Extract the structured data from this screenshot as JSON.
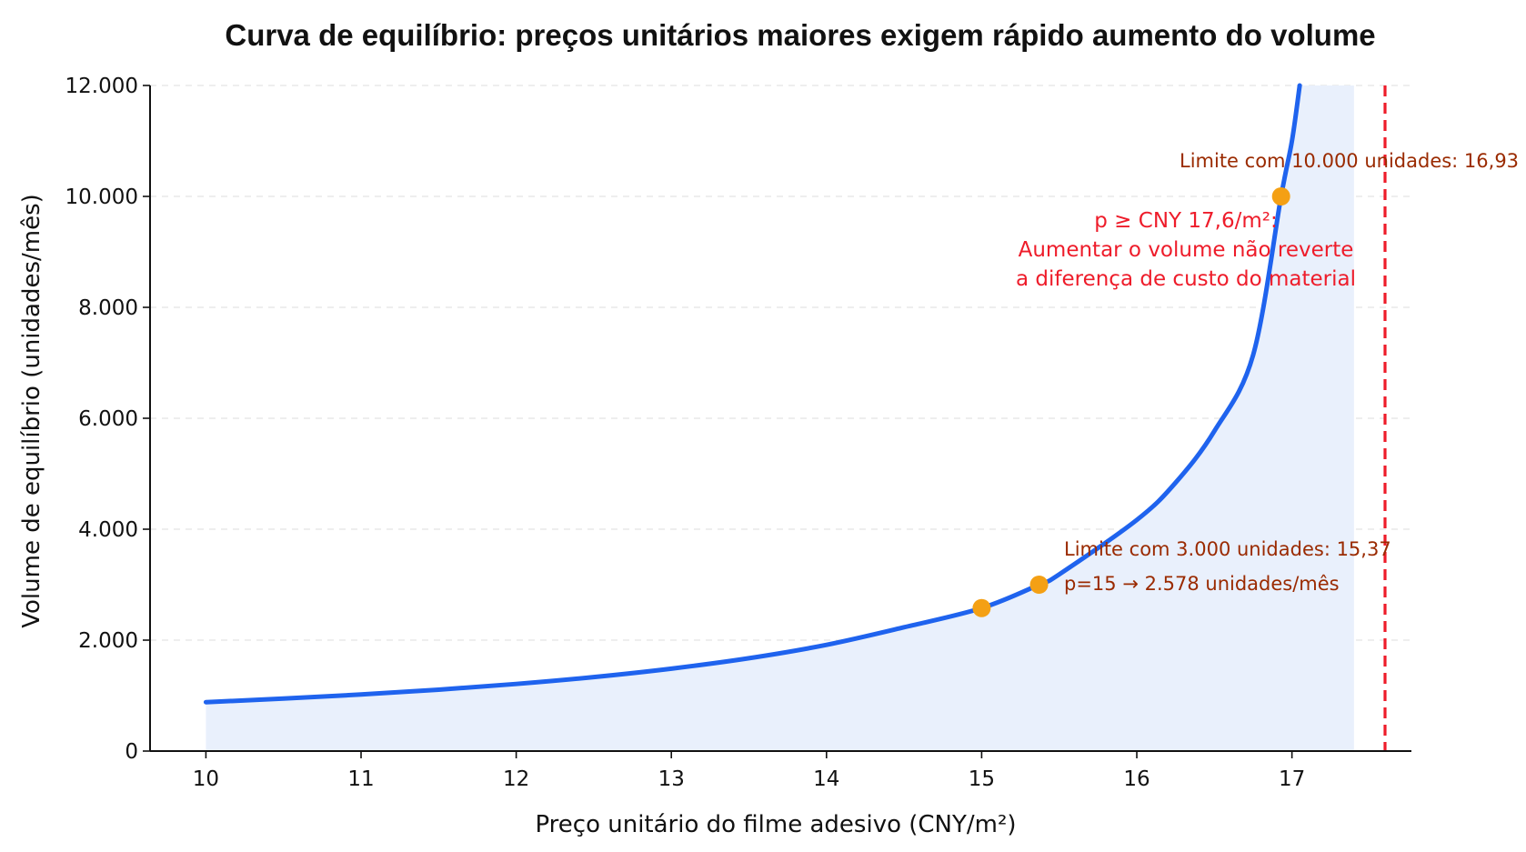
{
  "chart_data": {
    "type": "line",
    "title": "Curva de equilíbrio: preços unitários maiores exigem rápido aumento do volume",
    "xlabel": "Preço unitário do filme adesivo (CNY/m²)",
    "ylabel": "Volume de equilíbrio (unidades/mês)",
    "xlim": [
      9.64,
      17.77
    ],
    "ylim": [
      0,
      12000
    ],
    "x_ticks": [
      10,
      11,
      12,
      13,
      14,
      15,
      16,
      17
    ],
    "x_tick_labels": [
      "10",
      "11",
      "12",
      "13",
      "14",
      "15",
      "16",
      "17"
    ],
    "y_ticks": [
      0,
      2000,
      4000,
      6000,
      8000,
      10000,
      12000
    ],
    "y_tick_labels": [
      "0",
      "2.000",
      "4.000",
      "6.000",
      "8.000",
      "10.000",
      "12.000"
    ],
    "grid": "horizontal dashed",
    "series": [
      {
        "color": "#1f63ee",
        "fill": "#e9f0fc",
        "fill_x_end": 17.4,
        "x": [
          10.0,
          10.5,
          11.0,
          11.5,
          12.0,
          12.5,
          13.0,
          13.5,
          14.0,
          14.5,
          15.0,
          15.37,
          15.5,
          16.0,
          16.25,
          16.5,
          16.75,
          16.93,
          17.0,
          17.05
        ],
        "y": [
          882,
          946,
          1020,
          1107,
          1210,
          1334,
          1486,
          1674,
          1915,
          2232,
          2578,
          3000,
          3186,
          4167,
          4839,
          5769,
          7143,
          10000,
          11000,
          12000
        ]
      }
    ],
    "points": [
      {
        "x": 15.0,
        "y": 2578,
        "color": "#f4a014"
      },
      {
        "x": 15.37,
        "y": 3000,
        "color": "#f4a014"
      },
      {
        "x": 16.93,
        "y": 10000,
        "color": "#f4a014"
      }
    ],
    "vline": {
      "x": 17.6,
      "color": "#ee1c2a",
      "style": "dashed"
    },
    "annotations": {
      "limit_10000": "Limite com 10.000 unidades: 16,93",
      "limit_3000": "Limite com 3.000 unidades: 15,37",
      "p15": "p=15 → 2.578 unidades/mês",
      "red_line1": "p ≥ CNY 17,6/m²:",
      "red_line2": "Aumentar o volume não reverte",
      "red_line3": "a diferença de custo do material"
    }
  }
}
